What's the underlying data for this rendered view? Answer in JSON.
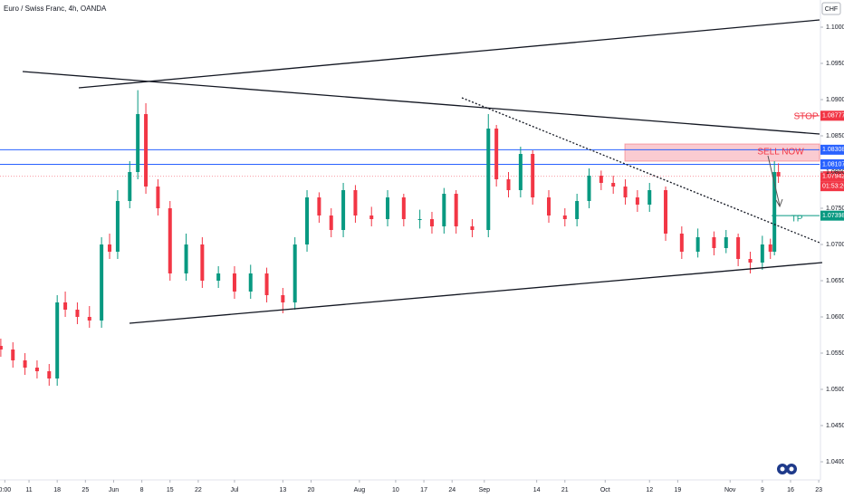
{
  "chart_data": {
    "type": "candlestick",
    "title": "Euro / Swiss Franc, 4h, OANDA",
    "currency": "CHF",
    "countdown": "01:53:26",
    "annotations": {
      "sell": "SELL NOW",
      "stop": "STOP",
      "tp": "TP"
    },
    "up_color": "#089981",
    "down_color": "#f23645",
    "xlim": [
      123.8,
      327.2
    ],
    "ylim": [
      1.0375,
      1.10375
    ],
    "yticks": [
      {
        "value": 1.04,
        "label": "1.04000"
      },
      {
        "value": 1.045,
        "label": "1.04500"
      },
      {
        "value": 1.05,
        "label": "1.05000"
      },
      {
        "value": 1.055,
        "label": "1.05500"
      },
      {
        "value": 1.06,
        "label": "1.06000"
      },
      {
        "value": 1.065,
        "label": "1.06500"
      },
      {
        "value": 1.07,
        "label": "1.07000"
      },
      {
        "value": 1.075,
        "label": "1.07500"
      },
      {
        "value": 1.08,
        "label": "1.08000"
      },
      {
        "value": 1.085,
        "label": "1.08500"
      },
      {
        "value": 1.09,
        "label": "1.09000"
      },
      {
        "value": 1.095,
        "label": "1.09500"
      },
      {
        "value": 1.1,
        "label": "1.10000"
      }
    ],
    "xticks": [
      {
        "value": 125,
        "label": "0:00"
      },
      {
        "value": 131,
        "label": "11"
      },
      {
        "value": 138,
        "label": "18"
      },
      {
        "value": 145,
        "label": "25"
      },
      {
        "value": 152,
        "label": "Jun"
      },
      {
        "value": 159,
        "label": "8"
      },
      {
        "value": 166,
        "label": "15"
      },
      {
        "value": 173,
        "label": "22"
      },
      {
        "value": 182,
        "label": "Jul"
      },
      {
        "value": 194,
        "label": "13"
      },
      {
        "value": 201,
        "label": "20"
      },
      {
        "value": 213,
        "label": "Aug"
      },
      {
        "value": 222,
        "label": "10"
      },
      {
        "value": 229,
        "label": "17"
      },
      {
        "value": 236,
        "label": "24"
      },
      {
        "value": 244,
        "label": "Sep"
      },
      {
        "value": 257,
        "label": "14"
      },
      {
        "value": 264,
        "label": "21"
      },
      {
        "value": 274,
        "label": "Oct"
      },
      {
        "value": 285,
        "label": "12"
      },
      {
        "value": 292,
        "label": "19"
      },
      {
        "value": 305,
        "label": "Nov"
      },
      {
        "value": 313,
        "label": "9"
      },
      {
        "value": 320,
        "label": "16"
      },
      {
        "value": 327,
        "label": "23"
      }
    ],
    "levels": [
      {
        "value": 1.08777,
        "color": "#f23645"
      },
      {
        "value": 1.08308,
        "color": "#2962ff"
      },
      {
        "value": 1.08107,
        "color": "#2962ff"
      },
      {
        "value": 1.07942,
        "color": "#f23645"
      },
      {
        "value": 1.07398,
        "color": "#089981"
      }
    ],
    "x": [
      124,
      127,
      130,
      133,
      136,
      138,
      140,
      143,
      146,
      149,
      151,
      153,
      156,
      158,
      160,
      163,
      166,
      170,
      174,
      178,
      182,
      186,
      190,
      194,
      197,
      200,
      203,
      206,
      209,
      212,
      216,
      220,
      224,
      228,
      231,
      234,
      237,
      241,
      245,
      247,
      250,
      253,
      256,
      260,
      264,
      267,
      270,
      273,
      276,
      279,
      282,
      285,
      289,
      293,
      297,
      301,
      304,
      307,
      310,
      313,
      315,
      316,
      317
    ],
    "open": [
      1.056,
      1.0555,
      1.054,
      1.053,
      1.0525,
      1.0515,
      1.062,
      1.061,
      1.06,
      1.0595,
      1.07,
      1.069,
      1.076,
      1.08,
      1.088,
      1.078,
      1.075,
      1.066,
      1.07,
      1.065,
      1.066,
      1.0635,
      1.066,
      1.063,
      1.062,
      1.07,
      1.0765,
      1.074,
      1.072,
      1.0775,
      1.074,
      1.0735,
      1.0765,
      1.0735,
      1.0735,
      1.0725,
      1.077,
      1.0725,
      1.072,
      1.086,
      1.079,
      1.0775,
      1.0825,
      1.0765,
      1.074,
      1.0735,
      1.076,
      1.0795,
      1.0785,
      1.078,
      1.0765,
      1.0755,
      1.0775,
      1.0715,
      1.069,
      1.071,
      1.0695,
      1.071,
      1.068,
      1.0675,
      1.07,
      1.069,
      1.08
    ],
    "high": [
      1.057,
      1.0565,
      1.055,
      1.054,
      1.0535,
      1.063,
      1.0635,
      1.062,
      1.0615,
      1.071,
      1.0715,
      1.0775,
      1.0815,
      1.0913,
      1.0895,
      1.079,
      1.076,
      1.0715,
      1.071,
      1.067,
      1.067,
      1.0672,
      1.0668,
      1.064,
      1.071,
      1.0775,
      1.0772,
      1.075,
      1.0785,
      1.0782,
      1.0752,
      1.0775,
      1.077,
      1.0748,
      1.0745,
      1.0778,
      1.0775,
      1.0735,
      1.088,
      1.0865,
      1.08,
      1.0835,
      1.083,
      1.0775,
      1.075,
      1.077,
      1.0805,
      1.0802,
      1.0795,
      1.079,
      1.0775,
      1.0785,
      1.078,
      1.0725,
      1.0722,
      1.0718,
      1.072,
      1.0715,
      1.069,
      1.0712,
      1.0708,
      1.0815,
      1.0812
    ],
    "low": [
      1.0545,
      1.053,
      1.052,
      1.0515,
      1.0505,
      1.0505,
      1.06,
      1.059,
      1.0585,
      1.0585,
      1.068,
      1.068,
      1.075,
      1.079,
      1.077,
      1.074,
      1.065,
      1.065,
      1.064,
      1.064,
      1.0625,
      1.0625,
      1.062,
      1.0605,
      1.061,
      1.069,
      1.073,
      1.071,
      1.071,
      1.073,
      1.0725,
      1.0725,
      1.0725,
      1.0722,
      1.0715,
      1.0715,
      1.0715,
      1.071,
      1.071,
      1.078,
      1.0765,
      1.0765,
      1.0755,
      1.073,
      1.0725,
      1.0725,
      1.075,
      1.0775,
      1.077,
      1.0755,
      1.0745,
      1.0745,
      1.0705,
      1.068,
      1.0682,
      1.0685,
      1.0688,
      1.067,
      1.066,
      1.0665,
      1.068,
      1.0685,
      1.0785
    ],
    "close": [
      1.0555,
      1.054,
      1.053,
      1.0525,
      1.0515,
      1.062,
      1.061,
      1.06,
      1.0595,
      1.07,
      1.069,
      1.076,
      1.08,
      1.088,
      1.078,
      1.075,
      1.066,
      1.07,
      1.065,
      1.066,
      1.0635,
      1.066,
      1.063,
      1.062,
      1.07,
      1.0765,
      1.074,
      1.072,
      1.0775,
      1.074,
      1.0735,
      1.0765,
      1.0735,
      1.0735,
      1.0725,
      1.077,
      1.0725,
      1.072,
      1.086,
      1.079,
      1.0775,
      1.0825,
      1.0765,
      1.074,
      1.0735,
      1.076,
      1.0795,
      1.0785,
      1.078,
      1.0765,
      1.0755,
      1.0775,
      1.0715,
      1.069,
      1.071,
      1.0695,
      1.071,
      1.068,
      1.0675,
      1.07,
      1.069,
      1.08,
      1.0794
    ]
  }
}
